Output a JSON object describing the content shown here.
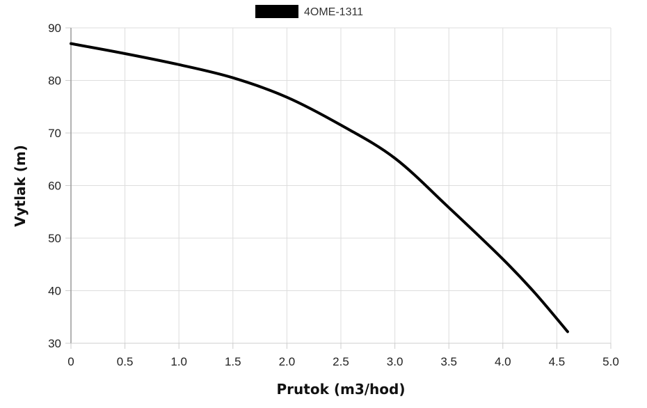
{
  "chart_data": {
    "type": "line",
    "title": "",
    "xlabel": "Prutok (m3/hod)",
    "ylabel": "Vytlak (m)",
    "xlim": [
      0,
      5.0
    ],
    "ylim": [
      30,
      90
    ],
    "x_ticks": [
      "0",
      "0.5",
      "1.0",
      "1.5",
      "2.0",
      "2.5",
      "3.0",
      "3.5",
      "4.0",
      "4.5",
      "5.0"
    ],
    "y_ticks": [
      "30",
      "40",
      "50",
      "60",
      "70",
      "80",
      "90"
    ],
    "grid": true,
    "legend_position": "top-center",
    "series": [
      {
        "name": "4OME-1311",
        "color": "#000000",
        "x": [
          0,
          0.5,
          1.0,
          1.5,
          2.0,
          2.5,
          3.0,
          3.5,
          4.0,
          4.3,
          4.6
        ],
        "y": [
          87,
          85.1,
          83.0,
          80.5,
          76.8,
          71.5,
          65.2,
          55.8,
          46.0,
          39.5,
          32.2
        ]
      }
    ]
  }
}
